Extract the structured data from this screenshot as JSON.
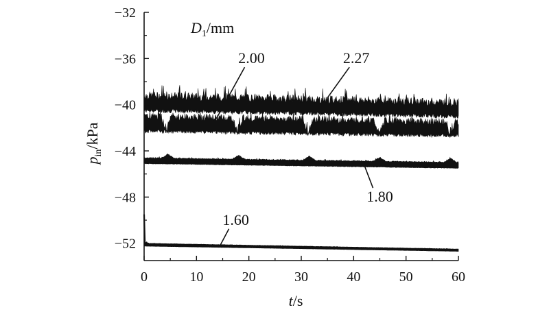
{
  "chart_data": {
    "type": "line",
    "xlabel": {
      "var": "t",
      "unit": "/s"
    },
    "ylabel": {
      "var": "p",
      "sub": "in",
      "unit": "/kPa"
    },
    "xlim": [
      0,
      60
    ],
    "ylim": [
      -53.5,
      -32
    ],
    "xticks": [
      0,
      10,
      20,
      30,
      40,
      50,
      60
    ],
    "yticks": [
      -52,
      -48,
      -44,
      -40,
      -36,
      -32
    ],
    "legend_title": {
      "var": "D",
      "sub": "1",
      "unit": "/mm"
    },
    "series": [
      {
        "name": "2.27",
        "band": [
          -39.2,
          -40.5
        ],
        "end": [
          -39.8,
          -41.0
        ],
        "dips": []
      },
      {
        "name": "2.00",
        "band": [
          -41.0,
          -42.3
        ],
        "end": [
          -41.5,
          -42.7
        ],
        "dips": [
          4.2,
          17.8,
          31.3,
          44.9,
          58.4
        ]
      },
      {
        "name": "1.80",
        "band": [
          -44.6,
          -45.1
        ],
        "end": [
          -45.0,
          -45.5
        ],
        "bumps": [
          4.5,
          18.0,
          31.5,
          45.0,
          58.5
        ]
      },
      {
        "name": "1.60",
        "start": -49.5,
        "band": [
          -52.0,
          -52.25
        ],
        "end": [
          -52.5,
          -52.7
        ]
      }
    ],
    "annotations": [
      {
        "text": "2.00",
        "x": 20.5,
        "y": -36.4,
        "point": [
          13.8,
          -41.2
        ]
      },
      {
        "text": "2.27",
        "x": 40.5,
        "y": -36.4,
        "point": [
          35.0,
          -39.4
        ]
      },
      {
        "text": "1.80",
        "x": 45.0,
        "y": -48.4,
        "point": [
          42.0,
          -45.2
        ]
      },
      {
        "text": "1.60",
        "x": 17.5,
        "y": -50.4,
        "point": [
          14.5,
          -52.2
        ]
      }
    ]
  }
}
